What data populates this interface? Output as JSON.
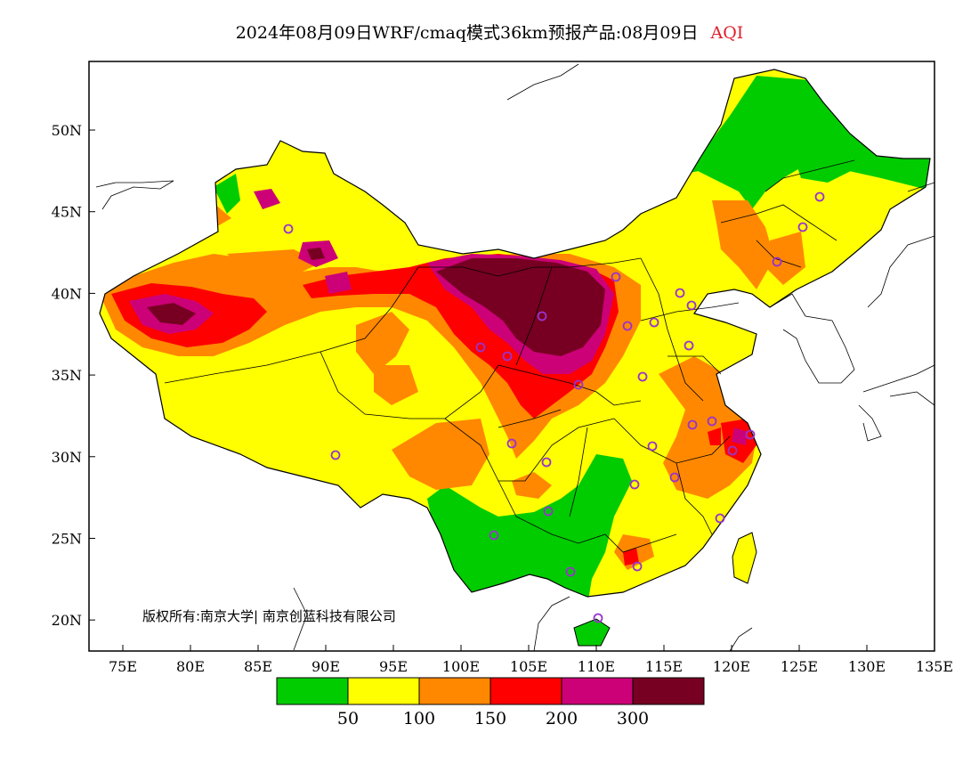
{
  "title": {
    "text": "2024年08月09日WRF/cmaq模式36km预报产品:08月09日",
    "variable": "AQI",
    "variable_color": "#e0202a"
  },
  "axes": {
    "lat_ticks": [
      "50N",
      "45N",
      "40N",
      "35N",
      "30N",
      "25N",
      "20N"
    ],
    "lon_ticks": [
      "75E",
      "80E",
      "85E",
      "90E",
      "95E",
      "100E",
      "105E",
      "110E",
      "115E",
      "120E",
      "125E",
      "130E",
      "135E"
    ]
  },
  "copyright": "版权所有:南京大学| 南京创蓝科技有限公司",
  "legend": {
    "colors": [
      "#00cc00",
      "#ffff00",
      "#ff8800",
      "#ff0000",
      "#cc0077",
      "#770022"
    ],
    "thresholds": [
      "50",
      "100",
      "150",
      "200",
      "300"
    ]
  },
  "aqi_classes": [
    {
      "label": "0-50",
      "color": "#00cc00"
    },
    {
      "label": "50-100",
      "color": "#ffff00"
    },
    {
      "label": "100-150",
      "color": "#ff8800"
    },
    {
      "label": "150-200",
      "color": "#ff0000"
    },
    {
      "label": "200-300",
      "color": "#cc0077"
    },
    {
      "label": ">300",
      "color": "#770022"
    }
  ],
  "station_marker_color": "#9933cc",
  "outline_color": "#000000"
}
